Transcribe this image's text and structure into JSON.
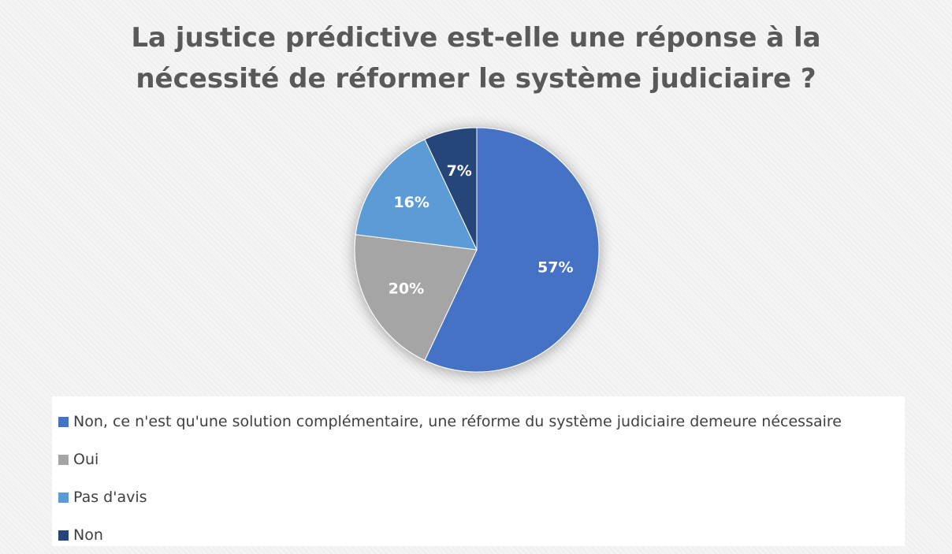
{
  "chart_data": {
    "type": "pie",
    "title_lines": [
      "La justice prédictive est-elle une réponse à la",
      "nécessité de réformer le système judiciaire ?"
    ],
    "series": [
      {
        "label": "Non, ce n'est qu'une solution complémentaire, une réforme du système judiciaire demeure nécessaire",
        "value": 57,
        "display": "57%",
        "color": "#4472C4"
      },
      {
        "label": "Oui",
        "value": 20,
        "display": "20%",
        "color": "#A5A5A5"
      },
      {
        "label": "Pas d'avis",
        "value": 16,
        "display": "16%",
        "color": "#5B9BD5"
      },
      {
        "label": "Non",
        "value": 7,
        "display": "7%",
        "color": "#264478"
      }
    ],
    "legend_position": "bottom",
    "data_label_color": "#FFFFFF"
  }
}
